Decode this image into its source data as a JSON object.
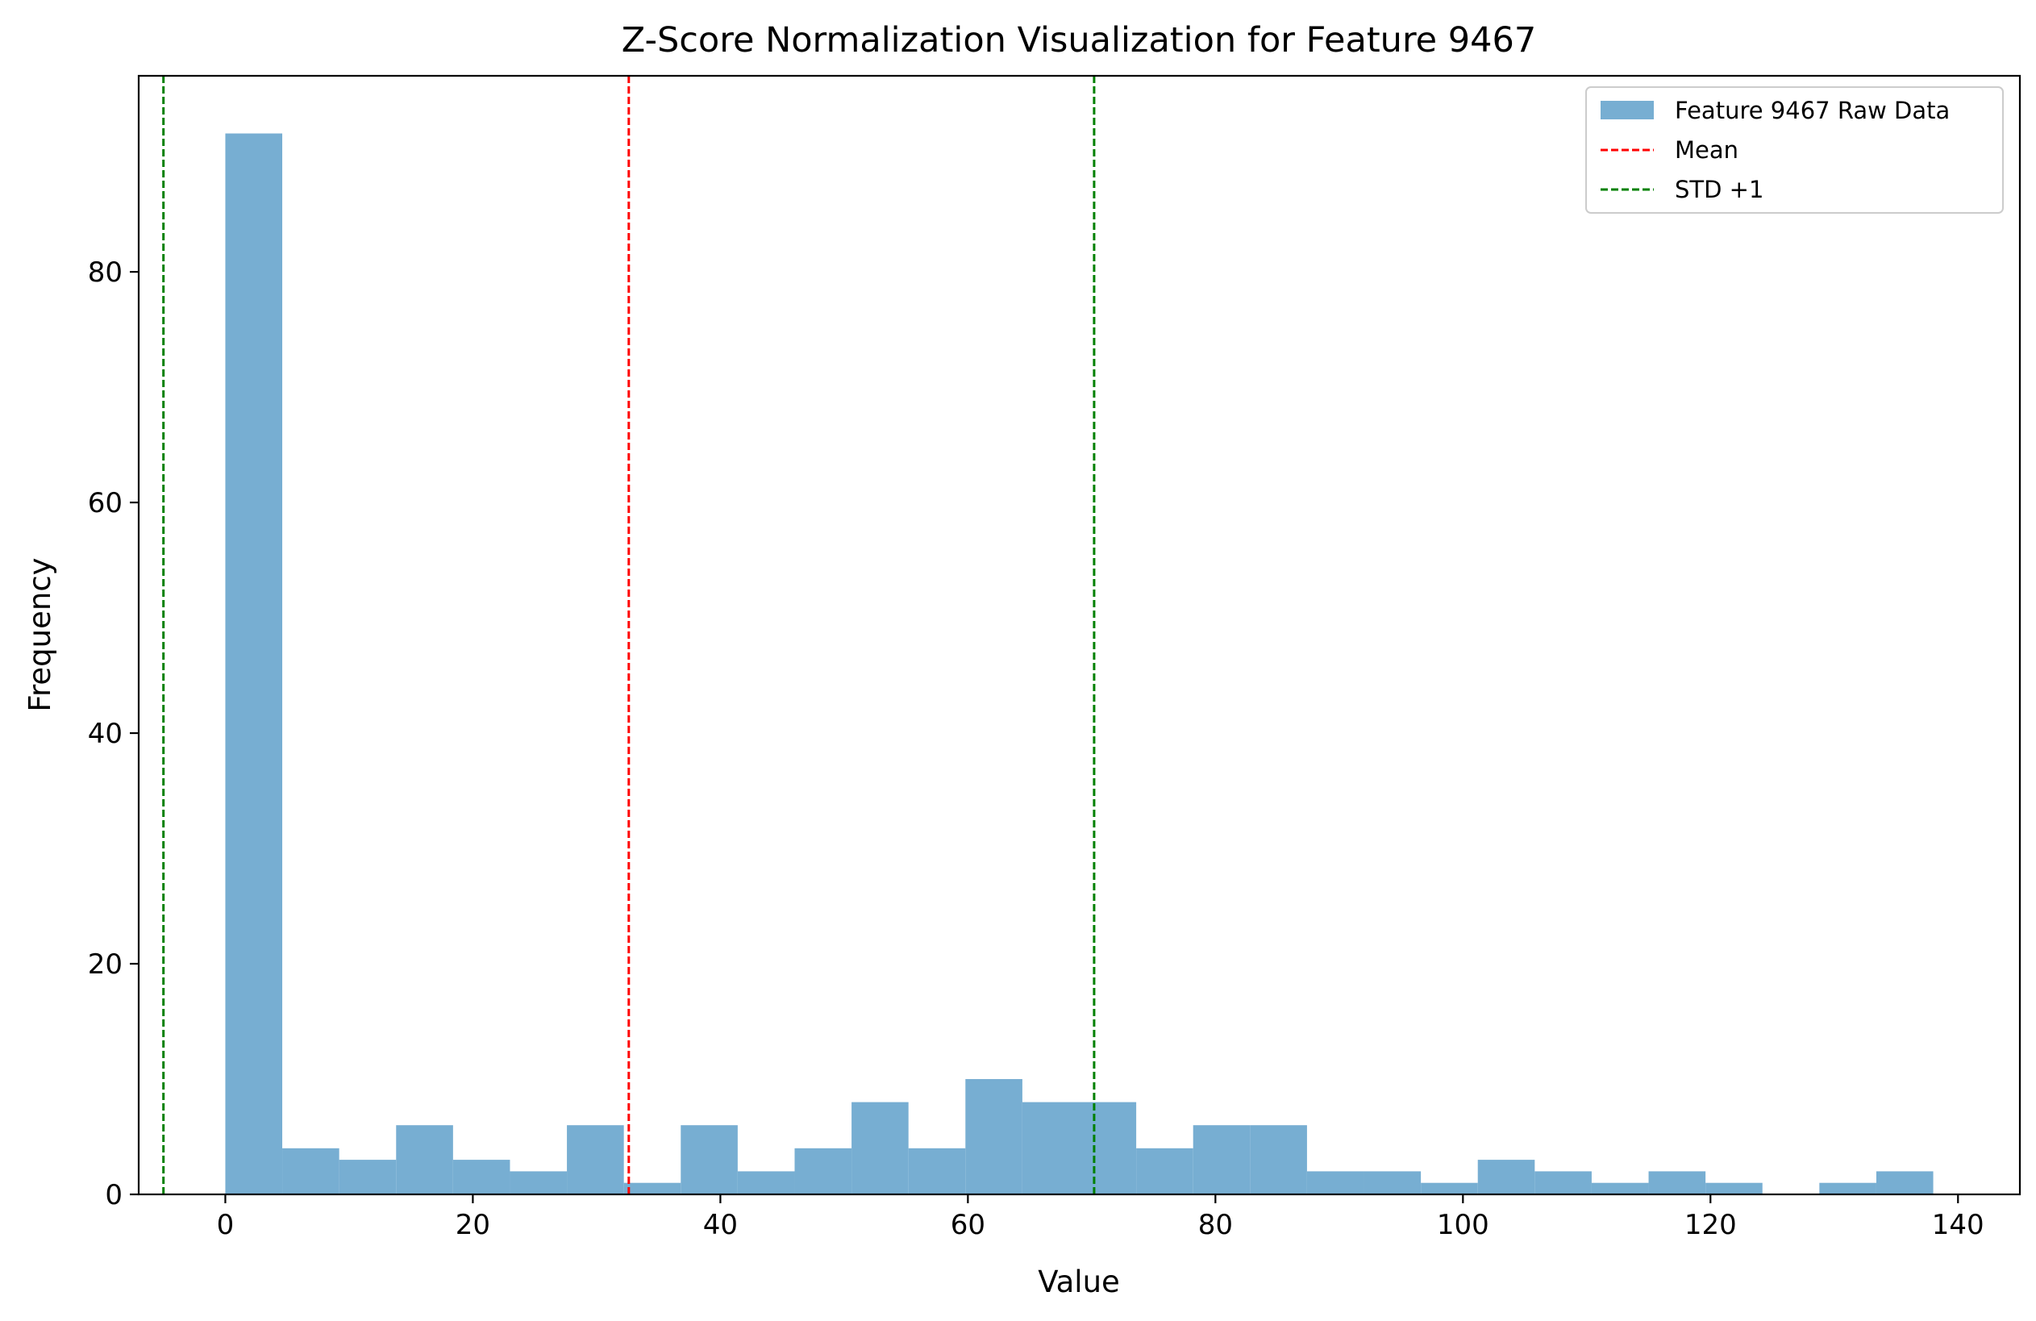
{
  "chart_data": {
    "type": "bar",
    "subtype": "histogram",
    "title": "Z-Score Normalization Visualization for Feature 9467",
    "xlabel": "Value",
    "ylabel": "Frequency",
    "xlim": [
      -7.0,
      145.0
    ],
    "ylim": [
      0,
      97
    ],
    "xticks": [
      0,
      20,
      40,
      60,
      80,
      100,
      120,
      140
    ],
    "yticks": [
      0,
      20,
      40,
      60,
      80
    ],
    "bin_edges": [
      0.0,
      4.6,
      9.2,
      13.8,
      18.4,
      23.0,
      27.6,
      32.2,
      36.8,
      41.4,
      46.0,
      50.6,
      55.2,
      59.8,
      64.4,
      69.0,
      73.6,
      78.2,
      82.8,
      87.4,
      92.0,
      96.6,
      101.2,
      105.8,
      110.4,
      115.0,
      119.6,
      124.2,
      128.8,
      133.4,
      138.0
    ],
    "counts": [
      92,
      4,
      3,
      6,
      3,
      2,
      6,
      1,
      6,
      2,
      4,
      8,
      4,
      10,
      8,
      8,
      4,
      6,
      6,
      2,
      2,
      1,
      3,
      2,
      1,
      2,
      1,
      0,
      1,
      2
    ],
    "series": [
      {
        "name": "Feature 9467 Raw Data",
        "kind": "histogram",
        "color": "#77aed2"
      },
      {
        "name": "Mean",
        "kind": "vline",
        "x": 32.6,
        "color": "#ff0000",
        "style": "dashed"
      },
      {
        "name": "STD +1",
        "kind": "vline",
        "x": 70.2,
        "color": "#008000",
        "style": "dashed"
      }
    ],
    "extra_vlines": [
      {
        "x": -5.0,
        "color": "#008000",
        "style": "dashed"
      }
    ],
    "grid": false,
    "legend_position": "top-right"
  }
}
